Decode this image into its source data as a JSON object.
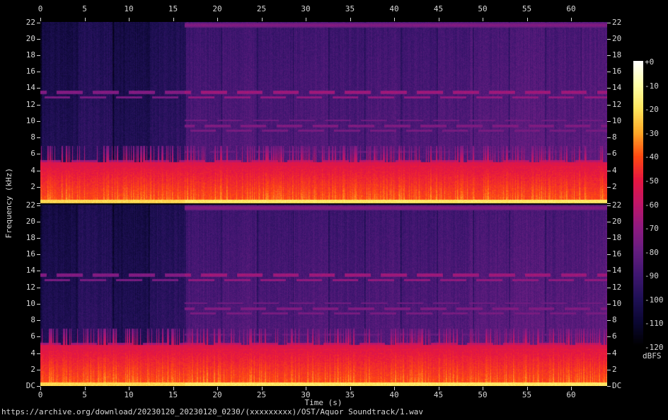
{
  "chart_data": {
    "type": "heatmap",
    "subtype": "stereo-audio-spectrogram",
    "xlabel": "Time (s)",
    "ylabel": "Frequency (kHz)",
    "caption": "https://archive.org/download/20230120_20230120_0230/(xxxxxxxxx)/OST/Aquor Soundtrack/1.wav",
    "x_ticks_s": [
      "0",
      "5",
      "10",
      "15",
      "20",
      "25",
      "30",
      "35",
      "40",
      "45",
      "50",
      "55",
      "60"
    ],
    "x_max_s": 64.1,
    "y_ticks_khz": [
      "22",
      "20",
      "18",
      "16",
      "14",
      "12",
      "10",
      "8",
      "6",
      "4",
      "2"
    ],
    "y_dc_label": "DC",
    "y_max_khz": 22.05,
    "channels": 2,
    "colorbar": {
      "label": "dBFS",
      "tick_labels": [
        "+0",
        "-10",
        "-20",
        "-30",
        "-40",
        "-50",
        "-60",
        "-70",
        "-80",
        "-90",
        "-100",
        "-110",
        "-120"
      ],
      "max_db": 0,
      "min_db": -120
    },
    "palette_stops": [
      {
        "db": 0,
        "color": "#ffffff"
      },
      {
        "db": -10,
        "color": "#ffffa8"
      },
      {
        "db": -20,
        "color": "#ffe55c"
      },
      {
        "db": -30,
        "color": "#ffa928"
      },
      {
        "db": -40,
        "color": "#ff4a11"
      },
      {
        "db": -50,
        "color": "#e61640"
      },
      {
        "db": -60,
        "color": "#c01668"
      },
      {
        "db": -70,
        "color": "#8f1a80"
      },
      {
        "db": -80,
        "color": "#651d80"
      },
      {
        "db": -90,
        "color": "#3f1670"
      },
      {
        "db": -100,
        "color": "#1f1055"
      },
      {
        "db": -110,
        "color": "#0b0732"
      },
      {
        "db": -120,
        "color": "#000000"
      }
    ],
    "sections": [
      {
        "start_s": 0,
        "base_db": -93,
        "note": "quiet intro, dark alternating 4s columns"
      },
      {
        "start_s": 16.3,
        "base_db": -84,
        "note": "full mix, brighter purple with measure columns"
      },
      {
        "start_s": 48.5,
        "base_db": -81,
        "note": "loudest passage, magenta columns"
      }
    ],
    "measure_period_s": 4.07,
    "low_band": {
      "f_khz": 5.0,
      "db_at_dc": -40,
      "slope_db_per_khz": -2.6,
      "spike_db": 14
    },
    "dc_band": {
      "f_khz": 0.5,
      "db": -19
    },
    "lines": [
      {
        "f_khz": 4.45,
        "db": -49,
        "w": 0.2
      },
      {
        "f_khz": 3.95,
        "db": -53,
        "w": 0.15
      },
      {
        "f_khz": 5.15,
        "db": -60,
        "w": 0.12,
        "dashed": true
      },
      {
        "f_khz": 13.55,
        "db": -65,
        "w": 0.2,
        "dashed": true
      },
      {
        "f_khz": 12.9,
        "db": -68,
        "w": 0.15,
        "dashed": true
      },
      {
        "f_khz": 9.45,
        "db": -72,
        "w": 0.15,
        "dashed": true,
        "loud_only": true
      },
      {
        "f_khz": 8.85,
        "db": -74,
        "w": 0.12,
        "dashed": true,
        "loud_only": true
      },
      {
        "f_khz": 10.1,
        "db": -76,
        "w": 0.1,
        "dashed": true,
        "loud_only": true
      },
      {
        "f_khz": 21.7,
        "db": -72,
        "w": 0.3,
        "loud_only": true
      },
      {
        "f_khz": 6.3,
        "db": -79,
        "w": 0.12,
        "dashed": true,
        "loud_only": true
      }
    ]
  }
}
